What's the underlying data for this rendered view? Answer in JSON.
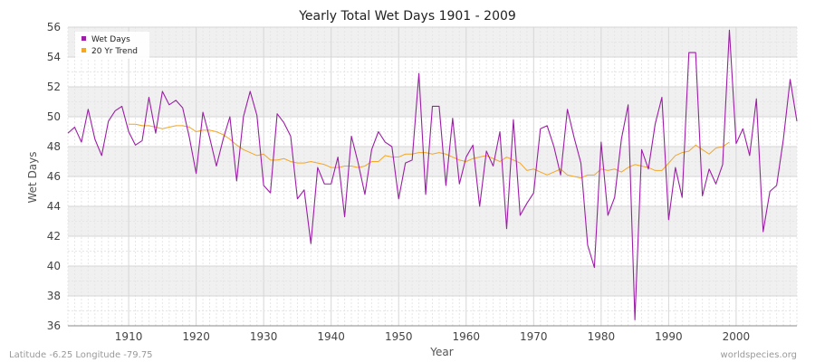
{
  "colors": {
    "wet_days": "#9c1ea6",
    "trend": "#f5a623",
    "band_light": "#ffffff",
    "band_dark": "#f0f0f0",
    "grid": "#dddddd"
  },
  "footer": {
    "location": "Latitude -6.25 Longitude -79.75",
    "site": "worldspecies.org"
  },
  "chart_data": {
    "type": "line",
    "title": "Yearly Total Wet Days 1901 - 2009",
    "xlabel": "Year",
    "ylabel": "Wet Days",
    "xlim": [
      1901,
      2009
    ],
    "ylim": [
      36,
      56
    ],
    "xticks": [
      1910,
      1920,
      1930,
      1940,
      1950,
      1960,
      1970,
      1980,
      1990,
      2000
    ],
    "yticks": [
      36,
      38,
      40,
      42,
      44,
      46,
      48,
      50,
      52,
      54,
      56
    ],
    "grid": true,
    "legend_position": "top-left",
    "series": [
      {
        "name": "Wet Days",
        "color": "#9c1ea6",
        "x": [
          1901,
          1902,
          1903,
          1904,
          1905,
          1906,
          1907,
          1908,
          1909,
          1910,
          1911,
          1912,
          1913,
          1914,
          1915,
          1916,
          1917,
          1918,
          1919,
          1920,
          1921,
          1922,
          1923,
          1924,
          1925,
          1926,
          1927,
          1928,
          1929,
          1930,
          1931,
          1932,
          1933,
          1934,
          1935,
          1936,
          1937,
          1938,
          1939,
          1940,
          1941,
          1942,
          1943,
          1944,
          1945,
          1946,
          1947,
          1948,
          1949,
          1950,
          1951,
          1952,
          1953,
          1954,
          1955,
          1956,
          1957,
          1958,
          1959,
          1960,
          1961,
          1962,
          1963,
          1964,
          1965,
          1966,
          1967,
          1968,
          1969,
          1970,
          1971,
          1972,
          1973,
          1974,
          1975,
          1976,
          1977,
          1978,
          1979,
          1980,
          1981,
          1982,
          1983,
          1984,
          1985,
          1986,
          1987,
          1988,
          1989,
          1990,
          1991,
          1992,
          1993,
          1994,
          1995,
          1996,
          1997,
          1998,
          1999,
          2000,
          2001,
          2002,
          2003,
          2004,
          2005,
          2006,
          2007,
          2008,
          2009
        ],
        "values": [
          48.9,
          49.3,
          48.3,
          50.5,
          48.5,
          47.4,
          49.7,
          50.4,
          50.7,
          49.0,
          48.1,
          48.4,
          51.3,
          48.9,
          51.7,
          50.8,
          51.1,
          50.6,
          48.6,
          46.2,
          50.3,
          48.6,
          46.7,
          48.5,
          50.0,
          45.7,
          50.0,
          51.7,
          50.1,
          45.4,
          44.9,
          50.2,
          49.6,
          48.7,
          44.5,
          45.1,
          41.5,
          46.6,
          45.5,
          45.5,
          47.3,
          43.3,
          48.7,
          46.9,
          44.8,
          47.8,
          49.0,
          48.3,
          48.0,
          44.5,
          46.9,
          47.1,
          52.9,
          44.8,
          50.7,
          50.7,
          45.4,
          49.9,
          45.5,
          47.3,
          48.1,
          44.0,
          47.7,
          46.7,
          49.0,
          42.5,
          49.8,
          43.4,
          44.2,
          44.9,
          49.2,
          49.4,
          48.0,
          46.1,
          50.5,
          48.6,
          46.9,
          41.4,
          39.9,
          48.3,
          43.4,
          44.6,
          48.5,
          50.8,
          36.4,
          47.8,
          46.5,
          49.5,
          51.3,
          43.1,
          46.6,
          44.6,
          54.3,
          54.3,
          44.7,
          46.5,
          45.5,
          46.8,
          55.8,
          48.2,
          49.2,
          47.4,
          51.2,
          42.3,
          45.0,
          45.4,
          48.5,
          52.5,
          49.7
        ]
      },
      {
        "name": "20 Yr Trend",
        "color": "#f5a623",
        "x": [
          1910,
          1911,
          1912,
          1913,
          1914,
          1915,
          1916,
          1917,
          1918,
          1919,
          1920,
          1921,
          1922,
          1923,
          1924,
          1925,
          1926,
          1927,
          1928,
          1929,
          1930,
          1931,
          1932,
          1933,
          1934,
          1935,
          1936,
          1937,
          1938,
          1939,
          1940,
          1941,
          1942,
          1943,
          1944,
          1945,
          1946,
          1947,
          1948,
          1949,
          1950,
          1951,
          1952,
          1953,
          1954,
          1955,
          1956,
          1957,
          1958,
          1959,
          1960,
          1961,
          1962,
          1963,
          1964,
          1965,
          1966,
          1967,
          1968,
          1969,
          1970,
          1971,
          1972,
          1973,
          1974,
          1975,
          1976,
          1977,
          1978,
          1979,
          1980,
          1981,
          1982,
          1983,
          1984,
          1985,
          1986,
          1987,
          1988,
          1989,
          1990,
          1991,
          1992,
          1993,
          1994,
          1995,
          1996,
          1997,
          1998,
          1999
        ],
        "values": [
          49.5,
          49.5,
          49.4,
          49.4,
          49.3,
          49.2,
          49.3,
          49.4,
          49.4,
          49.3,
          49.0,
          49.1,
          49.1,
          49.0,
          48.8,
          48.5,
          48.1,
          47.8,
          47.6,
          47.4,
          47.5,
          47.1,
          47.1,
          47.2,
          47.0,
          46.9,
          46.9,
          47.0,
          46.9,
          46.8,
          46.6,
          46.6,
          46.7,
          46.7,
          46.6,
          46.7,
          47.0,
          47.0,
          47.4,
          47.3,
          47.3,
          47.5,
          47.5,
          47.6,
          47.6,
          47.5,
          47.6,
          47.5,
          47.3,
          47.1,
          47.0,
          47.2,
          47.3,
          47.4,
          47.2,
          47.0,
          47.3,
          47.1,
          46.9,
          46.4,
          46.5,
          46.3,
          46.1,
          46.3,
          46.5,
          46.1,
          46.0,
          45.9,
          46.1,
          46.1,
          46.5,
          46.4,
          46.5,
          46.3,
          46.6,
          46.8,
          46.7,
          46.6,
          46.4,
          46.4,
          46.9,
          47.4,
          47.6,
          47.7,
          48.1,
          47.8,
          47.5,
          47.9,
          48.0,
          48.3
        ]
      }
    ]
  }
}
